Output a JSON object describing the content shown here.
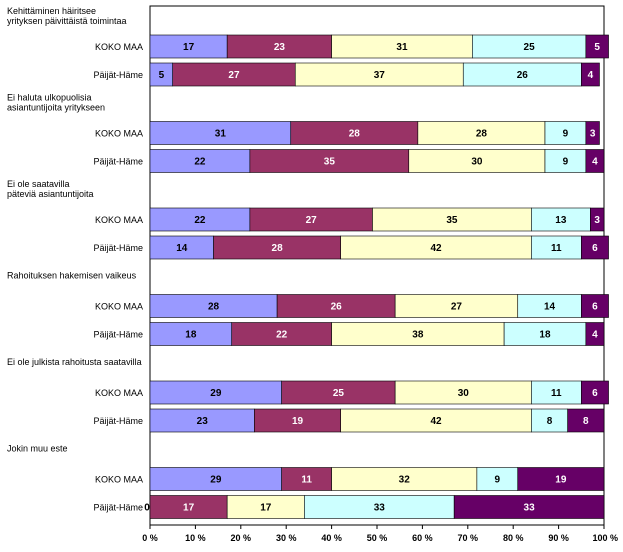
{
  "chart_data": {
    "type": "bar",
    "orientation": "horizontal",
    "stacked": "percent",
    "title": "",
    "xlabel": "",
    "ylabel": "",
    "xlim": [
      0,
      100
    ],
    "x_ticks": [
      "0 %",
      "10 %",
      "20 %",
      "30 %",
      "40 %",
      "50 %",
      "60 %",
      "70 %",
      "80 %",
      "90 %",
      "100 %"
    ],
    "grid": false,
    "legend": "none",
    "colors": [
      "#9999ff",
      "#993366",
      "#ffffcc",
      "#ccffff",
      "#660066"
    ],
    "groups": [
      {
        "title_lines": [
          "Kehittäminen häiritsee",
          "yrityksen päivittäistä toimintaa"
        ],
        "rows": [
          {
            "label": "KOKO MAA",
            "values": [
              17,
              23,
              31,
              25,
              5
            ]
          },
          {
            "label": "Päijät-Häme",
            "values": [
              5,
              27,
              37,
              26,
              4
            ]
          }
        ]
      },
      {
        "title_lines": [
          "Ei haluta ulkopuolisia",
          "asiantuntijoita yritykseen"
        ],
        "rows": [
          {
            "label": "KOKO MAA",
            "values": [
              31,
              28,
              28,
              9,
              3
            ]
          },
          {
            "label": "Päijät-Häme",
            "values": [
              22,
              35,
              30,
              9,
              4
            ]
          }
        ]
      },
      {
        "title_lines": [
          "Ei ole saatavilla",
          "päteviä asiantuntijoita"
        ],
        "rows": [
          {
            "label": "KOKO MAA",
            "values": [
              22,
              27,
              35,
              13,
              3
            ]
          },
          {
            "label": "Päijät-Häme",
            "values": [
              14,
              28,
              42,
              11,
              6
            ]
          }
        ]
      },
      {
        "title_lines": [
          "Rahoituksen hakemisen vaikeus"
        ],
        "rows": [
          {
            "label": "KOKO MAA",
            "values": [
              28,
              26,
              27,
              14,
              6
            ]
          },
          {
            "label": "Päijät-Häme",
            "values": [
              18,
              22,
              38,
              18,
              4
            ]
          }
        ]
      },
      {
        "title_lines": [
          "Ei ole julkista rahoitusta saatavilla"
        ],
        "rows": [
          {
            "label": "KOKO MAA",
            "values": [
              29,
              25,
              30,
              11,
              6
            ]
          },
          {
            "label": "Päijät-Häme",
            "values": [
              23,
              19,
              42,
              8,
              8
            ]
          }
        ]
      },
      {
        "title_lines": [
          "Jokin muu este"
        ],
        "rows": [
          {
            "label": "KOKO MAA",
            "values": [
              29,
              11,
              32,
              9,
              19
            ]
          },
          {
            "label": "Päijät-Häme",
            "values": [
              0,
              17,
              17,
              33,
              33
            ]
          }
        ]
      }
    ]
  }
}
